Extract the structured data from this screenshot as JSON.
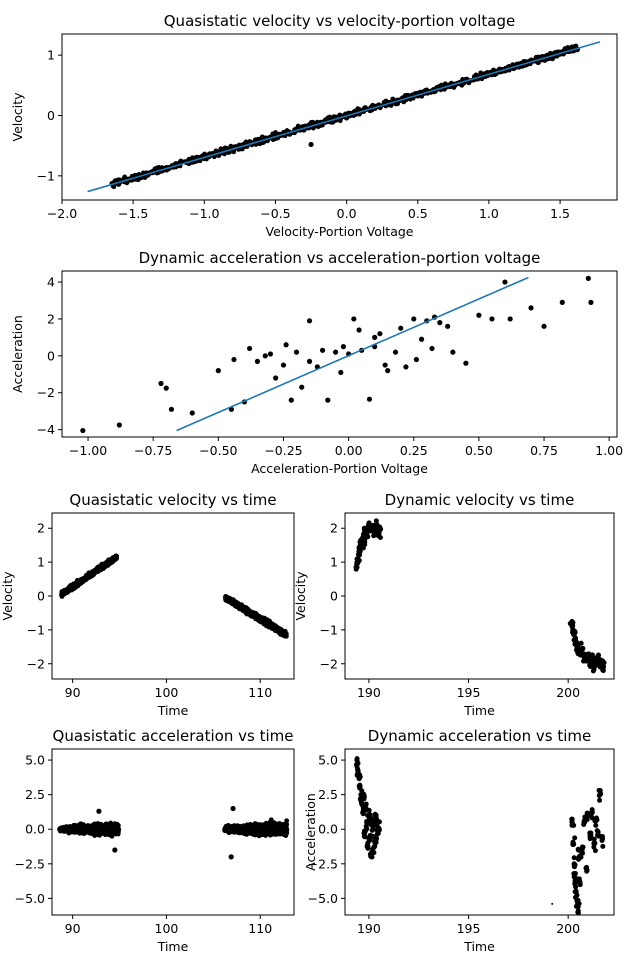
{
  "figure": {
    "background": "#ffffff",
    "point_color": "#000000",
    "fit_color": "#1f77b4"
  },
  "chart_data": [
    {
      "id": "qs_vel_vs_voltage",
      "type": "scatter",
      "title": "Quasistatic velocity vs velocity-portion voltage",
      "xlabel": "Velocity-Portion Voltage",
      "ylabel": "Velocity",
      "xlim": [
        -2.0,
        1.9
      ],
      "ylim": [
        -1.4,
        1.35
      ],
      "xticks": [
        -2.0,
        -1.5,
        -1.0,
        -0.5,
        0.0,
        0.5,
        1.0,
        1.5
      ],
      "yticks": [
        -1,
        0,
        1
      ],
      "xtick_labels": [
        "−2.0",
        "−1.5",
        "−1.0",
        "−0.5",
        "0.0",
        "0.5",
        "1.0",
        "1.5"
      ],
      "ytick_labels": [
        "−1",
        "0",
        "1"
      ],
      "fit_line": {
        "x": [
          -1.82,
          1.78
        ],
        "y": [
          -1.26,
          1.22
        ]
      },
      "series": [
        {
          "name": "",
          "x": [
            -1.6,
            -1.5,
            -1.4,
            -1.3,
            -1.2,
            -1.1,
            -1.0,
            -0.9,
            -0.8,
            -0.7,
            -0.6,
            -0.5,
            -0.4,
            -0.3,
            -0.25,
            -0.2,
            -0.1,
            0.0,
            0.1,
            0.2,
            0.3,
            0.4,
            0.5,
            0.6,
            0.7,
            0.8,
            0.9,
            1.0,
            1.1,
            1.2,
            1.3,
            1.4,
            1.5,
            1.6
          ],
          "y": [
            -1.12,
            -1.05,
            -0.99,
            -0.92,
            -0.85,
            -0.78,
            -0.71,
            -0.65,
            -0.58,
            -0.51,
            -0.45,
            -0.38,
            -0.31,
            -0.24,
            -0.48,
            -0.18,
            -0.11,
            -0.04,
            0.06,
            0.12,
            0.2,
            0.27,
            0.34,
            0.41,
            0.48,
            0.55,
            0.62,
            0.69,
            0.76,
            0.83,
            0.9,
            0.97,
            1.04,
            1.11
          ]
        }
      ],
      "dense_band": true
    },
    {
      "id": "dyn_acc_vs_voltage",
      "type": "scatter",
      "title": "Dynamic acceleration vs acceleration-portion voltage",
      "xlabel": "Acceleration-Portion Voltage",
      "ylabel": "Acceleration",
      "xlim": [
        -1.1,
        1.03
      ],
      "ylim": [
        -4.4,
        4.6
      ],
      "xticks": [
        -1.0,
        -0.75,
        -0.5,
        -0.25,
        0.0,
        0.25,
        0.5,
        0.75,
        1.0
      ],
      "yticks": [
        -4,
        -2,
        0,
        2,
        4
      ],
      "xtick_labels": [
        "−1.00",
        "−0.75",
        "−0.50",
        "−0.25",
        "0.00",
        "0.25",
        "0.50",
        "0.75",
        "1.00"
      ],
      "ytick_labels": [
        "−4",
        "−2",
        "0",
        "2",
        "4"
      ],
      "fit_line": {
        "x": [
          -0.66,
          0.69
        ],
        "y": [
          -4.05,
          4.25
        ]
      },
      "series": [
        {
          "name": "",
          "x": [
            -1.02,
            -0.88,
            -0.72,
            -0.7,
            -0.68,
            -0.6,
            -0.5,
            -0.45,
            -0.44,
            -0.4,
            -0.38,
            -0.35,
            -0.3,
            -0.28,
            -0.25,
            -0.22,
            -0.2,
            -0.18,
            -0.15,
            -0.12,
            -0.1,
            -0.08,
            -0.05,
            -0.03,
            0.0,
            0.02,
            0.05,
            0.08,
            0.1,
            0.12,
            0.15,
            0.18,
            0.2,
            0.22,
            0.25,
            0.28,
            0.3,
            0.32,
            0.35,
            0.4,
            0.45,
            0.5,
            0.55,
            0.6,
            0.62,
            0.7,
            0.75,
            0.82,
            0.92,
            0.93,
            -0.15,
            -0.02,
            0.1,
            0.26,
            0.38,
            -0.32,
            0.14,
            -0.24,
            0.04,
            0.33
          ],
          "y": [
            -4.05,
            -3.75,
            -1.5,
            -1.75,
            -2.9,
            -3.1,
            -0.8,
            -2.9,
            -0.2,
            -2.5,
            0.4,
            -0.3,
            0.1,
            -1.2,
            -0.5,
            -2.4,
            0.2,
            -1.7,
            1.9,
            -0.6,
            0.3,
            -2.4,
            0.2,
            -0.9,
            0.1,
            2.0,
            0.3,
            -2.35,
            0.5,
            1.2,
            -0.8,
            0.2,
            1.5,
            -0.6,
            2.0,
            0.9,
            1.9,
            0.4,
            1.8,
            0.2,
            -0.4,
            2.2,
            2.0,
            4.0,
            2.0,
            2.6,
            1.6,
            2.9,
            4.2,
            2.9,
            -0.3,
            0.5,
            1.0,
            -0.2,
            1.6,
            0.0,
            -0.5,
            0.6,
            1.4,
            2.1
          ]
        }
      ]
    },
    {
      "id": "qs_vel_vs_time",
      "type": "scatter",
      "title": "Quasistatic velocity vs time",
      "xlabel": "Time",
      "ylabel": "Velocity",
      "xlim": [
        87.8,
        113.6
      ],
      "ylim": [
        -2.45,
        2.45
      ],
      "xticks": [
        90,
        100,
        110
      ],
      "yticks": [
        -2,
        -1,
        0,
        1,
        2
      ],
      "xtick_labels": [
        "90",
        "100",
        "110"
      ],
      "ytick_labels": [
        "−2",
        "−1",
        "0",
        "1",
        "2"
      ],
      "segments": [
        {
          "x0": 88.8,
          "x1": 94.7,
          "y0": 0.05,
          "y1": 1.15,
          "spread": 0.12
        },
        {
          "x0": 106.3,
          "x1": 112.8,
          "y0": -0.05,
          "y1": -1.15,
          "spread": 0.14
        }
      ]
    },
    {
      "id": "dyn_vel_vs_time",
      "type": "scatter",
      "title": "Dynamic velocity vs time",
      "xlabel": "Time",
      "ylabel": "Velocity",
      "xlim": [
        188.8,
        202.3
      ],
      "ylim": [
        -2.45,
        2.45
      ],
      "xticks": [
        190,
        195,
        200
      ],
      "yticks": [
        -2,
        -1,
        0,
        1,
        2
      ],
      "xtick_labels": [
        "190",
        "195",
        "200"
      ],
      "ytick_labels": [
        "−2",
        "−1",
        "0",
        "1",
        "2"
      ],
      "series": [
        {
          "name": "",
          "x": [
            189.4,
            189.45,
            189.5,
            189.55,
            189.6,
            189.65,
            189.7,
            189.75,
            189.8,
            189.85,
            189.9,
            190.0,
            190.1,
            190.2,
            190.3,
            190.4,
            190.5,
            190.55,
            200.2,
            200.25,
            200.3,
            200.35,
            200.4,
            200.45,
            200.5,
            200.6,
            200.7,
            200.8,
            200.9,
            201.0,
            201.1,
            201.2,
            201.3,
            201.4,
            201.5,
            201.6,
            201.7,
            201.75
          ],
          "y": [
            0.85,
            1.0,
            1.2,
            1.35,
            1.5,
            1.6,
            1.7,
            1.55,
            1.9,
            2.0,
            1.8,
            2.1,
            1.95,
            2.05,
            1.9,
            2.1,
            1.85,
            2.0,
            -0.9,
            -1.0,
            -1.15,
            -1.3,
            -1.4,
            -1.5,
            -1.6,
            -1.7,
            -1.55,
            -1.8,
            -1.9,
            -1.75,
            -2.0,
            -1.85,
            -2.1,
            -1.9,
            -1.8,
            -2.05,
            -1.95,
            -2.15
          ]
        }
      ]
    },
    {
      "id": "qs_acc_vs_time",
      "type": "scatter",
      "title": "Quasistatic acceleration vs time",
      "xlabel": "Time",
      "ylabel": "",
      "xlim": [
        87.8,
        113.6
      ],
      "ylim": [
        -6.2,
        5.8
      ],
      "xticks": [
        90,
        100,
        110
      ],
      "yticks": [
        -5.0,
        -2.5,
        0.0,
        2.5,
        5.0
      ],
      "xtick_labels": [
        "90",
        "100",
        "110"
      ],
      "ytick_labels": [
        "−5.0",
        "−2.5",
        "0.0",
        "2.5",
        "5.0"
      ],
      "segments": [
        {
          "x0": 88.6,
          "x1": 94.9,
          "y0": 0.0,
          "y1": 0.0,
          "spread": 0.7
        },
        {
          "x0": 106.2,
          "x1": 112.9,
          "y0": 0.0,
          "y1": 0.0,
          "spread": 0.8
        }
      ],
      "outliers": {
        "x": [
          92.8,
          94.5,
          107.1,
          106.9
        ],
        "y": [
          1.3,
          -1.5,
          1.5,
          -2.0
        ]
      }
    },
    {
      "id": "dyn_acc_vs_time",
      "type": "scatter",
      "title": "Dynamic acceleration vs time",
      "xlabel": "Time",
      "ylabel": "Acceleration",
      "xlim": [
        188.8,
        202.3
      ],
      "ylim": [
        -6.2,
        5.8
      ],
      "xticks": [
        190,
        195,
        200
      ],
      "yticks": [
        -5.0,
        -2.5,
        0.0,
        2.5,
        5.0
      ],
      "xtick_labels": [
        "190",
        "195",
        "200"
      ],
      "ytick_labels": [
        "−5.0",
        "−2.5",
        "0.0",
        "2.5",
        "5.0"
      ],
      "series": [
        {
          "name": "",
          "x": [
            189.4,
            189.45,
            189.5,
            189.55,
            189.6,
            189.65,
            189.7,
            189.75,
            189.8,
            189.85,
            189.9,
            189.95,
            190.0,
            190.05,
            190.1,
            190.15,
            190.2,
            190.25,
            190.3,
            190.35,
            190.4,
            190.45,
            190.5,
            199.2,
            200.2,
            200.25,
            200.3,
            200.35,
            200.4,
            200.45,
            200.5,
            200.55,
            200.6,
            200.7,
            200.8,
            200.9,
            201.0,
            201.1,
            201.2,
            201.3,
            201.4,
            201.5,
            201.6,
            201.7
          ],
          "y": [
            5.0,
            4.2,
            3.8,
            3.0,
            2.5,
            1.8,
            1.2,
            2.2,
            -0.2,
            1.5,
            0.4,
            -1.0,
            1.0,
            -0.5,
            0.6,
            -2.0,
            0.2,
            -1.3,
            0.8,
            -0.8,
            0.3,
            -0.3,
            0.0,
            -5.4,
            0.5,
            -1.0,
            -2.5,
            -3.5,
            -4.5,
            -5.2,
            -5.6,
            -2.0,
            -4.0,
            -1.5,
            0.5,
            -2.8,
            1.0,
            -0.5,
            1.2,
            -1.0,
            0.7,
            -0.2,
            2.5,
            -0.8
          ]
        }
      ]
    }
  ]
}
